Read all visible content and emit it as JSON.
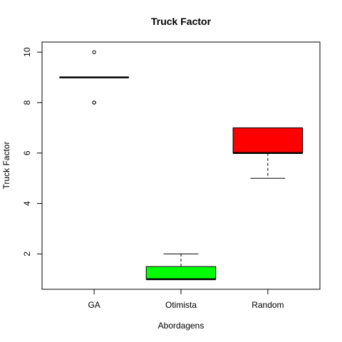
{
  "chart_data": {
    "type": "boxplot",
    "title": "Truck Factor",
    "xlabel": "Abordagens",
    "ylabel": "Truck Factor",
    "categories": [
      "GA",
      "Otimista",
      "Random"
    ],
    "ylim": [
      0.6,
      10.4
    ],
    "yticks": [
      2,
      4,
      6,
      8,
      10
    ],
    "grid": false,
    "boxes": [
      {
        "label": "GA",
        "color": "#ffffff",
        "q1": 9,
        "median": 9,
        "q3": 9,
        "whisker_low": 9,
        "whisker_high": 9,
        "outliers": [
          8,
          8,
          10
        ]
      },
      {
        "label": "Otimista",
        "color": "#00ff00",
        "q1": 1,
        "median": 1,
        "q3": 1.5,
        "whisker_low": 1,
        "whisker_high": 2,
        "outliers": []
      },
      {
        "label": "Random",
        "color": "#ff0000",
        "q1": 6,
        "median": 6,
        "q3": 7,
        "whisker_low": 5,
        "whisker_high": 7,
        "outliers": []
      }
    ]
  }
}
